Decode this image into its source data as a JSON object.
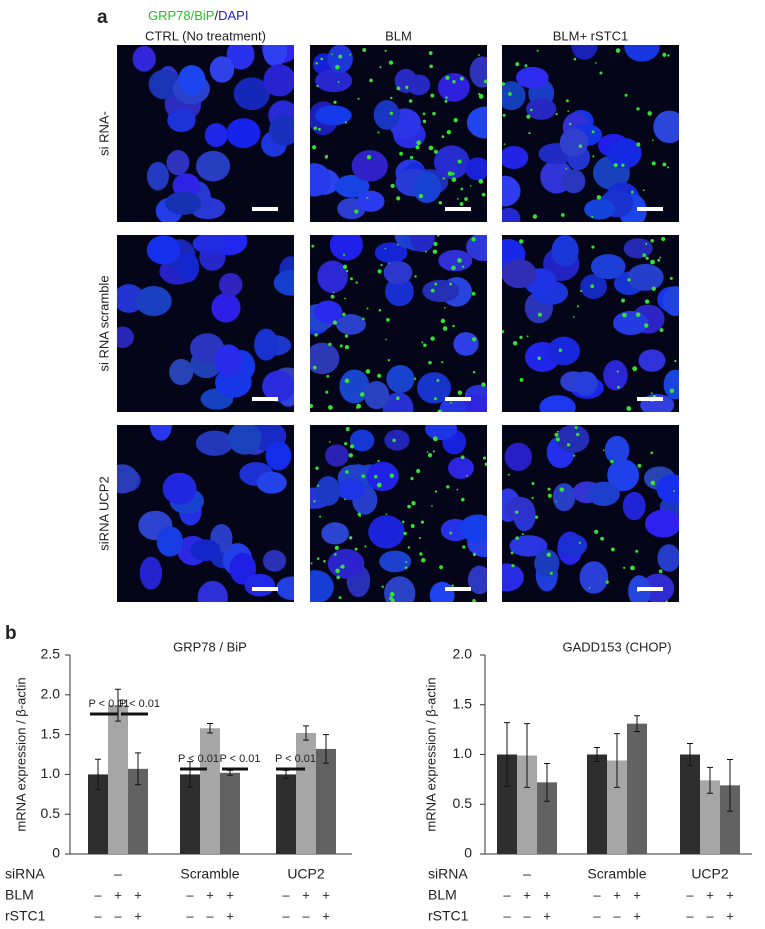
{
  "panel_a": {
    "label": "a",
    "stain": [
      "GRP78/BiP",
      "/",
      "DAPI"
    ],
    "columns": [
      "CTRL (No treatment)",
      "BLM",
      "BLM+ rSTC1"
    ],
    "rows": [
      "si RNA-",
      "si RNA scramble",
      "siRNA UCP2"
    ]
  },
  "panel_b": {
    "label": "b"
  },
  "chart_data": [
    {
      "type": "bar",
      "title": "GRP78 / BiP",
      "y_label": "mRNA expression / β-actin",
      "category_label": "siRNA",
      "categories": [
        "–",
        "Scramble",
        "UCP2"
      ],
      "conditions": [
        {
          "label": "BLM",
          "marks": [
            "–",
            "+",
            "+"
          ]
        },
        {
          "label": "rSTC1",
          "marks": [
            "–",
            "–",
            "+"
          ]
        }
      ],
      "series": [
        {
          "color": "#2e2e2e",
          "values": [
            1.0,
            1.0,
            1.0
          ],
          "errors": [
            0.19,
            0.16,
            0.05
          ]
        },
        {
          "color": "#a6a6a6",
          "values": [
            1.87,
            1.58,
            1.52
          ],
          "errors": [
            0.2,
            0.06,
            0.09
          ]
        },
        {
          "color": "#626262",
          "values": [
            1.07,
            1.02,
            1.32
          ],
          "errors": [
            0.2,
            0.03,
            0.18
          ]
        }
      ],
      "ylim": [
        0,
        2.5
      ],
      "yticks": [
        0,
        0.5,
        {
          "value": 1,
          "label": "1.0"
        },
        1.5,
        {
          "value": 2,
          "label": "2.0"
        },
        2.5
      ],
      "annotations": [
        "P < 0.01",
        "P < 0.01",
        "P < 0.01",
        "P < 0.01",
        "P < 0.01"
      ]
    },
    {
      "type": "bar",
      "title": "GADD153 (CHOP)",
      "y_label": "mRNA expression / β-actin",
      "category_label": "siRNA",
      "categories": [
        "–",
        "Scramble",
        "UCP2"
      ],
      "conditions": [
        {
          "label": "BLM",
          "marks": [
            "–",
            "+",
            "+"
          ]
        },
        {
          "label": "rSTC1",
          "marks": [
            "–",
            "–",
            "+"
          ]
        }
      ],
      "series": [
        {
          "color": "#2e2e2e",
          "values": [
            1.0,
            1.0,
            1.0
          ],
          "errors": [
            0.32,
            0.07,
            0.11
          ]
        },
        {
          "color": "#a6a6a6",
          "values": [
            0.99,
            0.94,
            0.74
          ],
          "errors": [
            0.32,
            0.27,
            0.13
          ]
        },
        {
          "color": "#626262",
          "values": [
            0.72,
            1.31,
            0.69
          ],
          "errors": [
            0.19,
            0.08,
            0.26
          ]
        }
      ],
      "ylim": [
        0,
        2
      ],
      "yticks": [
        0,
        0.5,
        {
          "value": 1,
          "label": "1.0"
        },
        1.5,
        {
          "value": 2,
          "label": "2.0"
        }
      ]
    }
  ]
}
